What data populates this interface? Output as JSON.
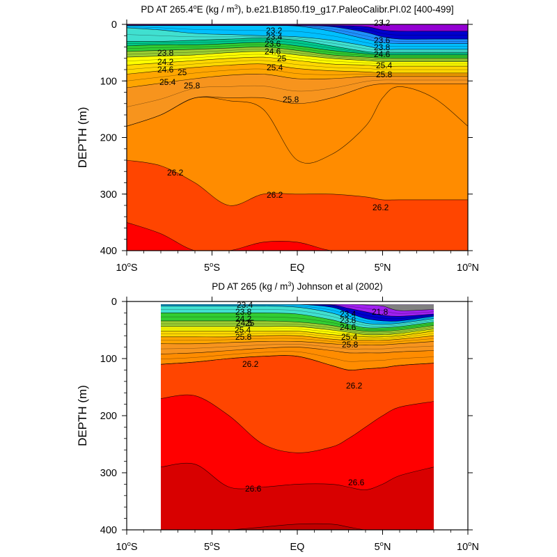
{
  "chart_data": [
    {
      "type": "heatmap",
      "title_parts": [
        "PD AT 265.4",
        "o",
        "E (kg / m",
        "3",
        "), b.e21.B1850.f19_g17.PaleoCalibr.PI.02 [400-499]"
      ],
      "ylabel": "DEPTH (m)",
      "xlabel": "",
      "x_ticks": [
        {
          "main": "10",
          "sup": "o",
          "tail": "S"
        },
        {
          "main": "5",
          "sup": "o",
          "tail": "S"
        },
        {
          "main": "EQ",
          "sup": "",
          "tail": ""
        },
        {
          "main": "5",
          "sup": "o",
          "tail": "N"
        },
        {
          "main": "10",
          "sup": "o",
          "tail": "N"
        }
      ],
      "x_tick_values": [
        -10,
        -5,
        0,
        5,
        10
      ],
      "y_ticks": [
        "0",
        "100",
        "200",
        "300",
        "400"
      ],
      "y_tick_values": [
        0,
        100,
        200,
        300,
        400
      ],
      "xlim": [
        -10,
        10
      ],
      "ylim": [
        0,
        400
      ],
      "y_reversed": true,
      "x": [
        -10,
        -8,
        -6,
        -4,
        -2,
        0,
        2,
        4,
        5,
        6,
        8,
        10
      ],
      "surface_layers": [
        {
          "pd": 22.4,
          "color": "#9400d3",
          "depths": [
            2,
            2,
            2,
            2,
            2,
            2,
            2,
            4,
            10,
            12,
            12,
            12
          ]
        },
        {
          "pd": 22.8,
          "color": "#0000cd",
          "depths": [
            2,
            2,
            2,
            2,
            2,
            2,
            4,
            14,
            22,
            26,
            26,
            26
          ]
        },
        {
          "pd": 23.0,
          "color": "#1e90ff",
          "depths": [
            2,
            2,
            2,
            2,
            2,
            3,
            12,
            26,
            32,
            34,
            34,
            34
          ]
        },
        {
          "pd": 23.2,
          "color": "#00bfff",
          "depths": [
            6,
            10,
            16,
            18,
            20,
            22,
            28,
            38,
            44,
            44,
            44,
            44
          ]
        },
        {
          "pd": 23.4,
          "color": "#40e0d0",
          "depths": [
            30,
            30,
            28,
            26,
            24,
            28,
            38,
            48,
            50,
            50,
            50,
            50
          ]
        },
        {
          "pd": 23.6,
          "color": "#00c88c",
          "depths": [
            38,
            36,
            36,
            34,
            32,
            38,
            46,
            52,
            54,
            54,
            54,
            54
          ]
        },
        {
          "pd": 23.8,
          "color": "#32cd32",
          "depths": [
            48,
            46,
            44,
            42,
            40,
            46,
            54,
            58,
            60,
            60,
            60,
            60
          ]
        },
        {
          "pd": 24.2,
          "color": "#9acd32",
          "depths": [
            58,
            56,
            54,
            50,
            48,
            54,
            60,
            64,
            66,
            66,
            66,
            66
          ]
        },
        {
          "pd": 24.6,
          "color": "#ffff00",
          "depths": [
            72,
            68,
            64,
            60,
            58,
            64,
            70,
            72,
            74,
            74,
            74,
            74
          ]
        },
        {
          "pd": 25.0,
          "color": "#ffd700",
          "depths": [
            88,
            82,
            76,
            72,
            70,
            78,
            82,
            84,
            86,
            86,
            86,
            86
          ]
        },
        {
          "pd": 25.4,
          "color": "#ffa500",
          "depths": [
            112,
            104,
            96,
            90,
            88,
            96,
            96,
            92,
            92,
            92,
            92,
            92
          ]
        },
        {
          "pd": 25.8,
          "color": "#f7941d",
          "depths": [
            180,
            160,
            130,
            130,
            130,
            140,
            130,
            110,
            105,
            105,
            105,
            105
          ]
        }
      ],
      "deep_layers": [
        {
          "pd": 26.0,
          "color": "#ff8c00",
          "depths": [
            180,
            160,
            130,
            135,
            150,
            240,
            230,
            180,
            130,
            110,
            130,
            180
          ]
        },
        {
          "pd": 26.2,
          "color": "#ff4500",
          "depths": [
            240,
            250,
            280,
            320,
            300,
            300,
            300,
            305,
            310,
            310,
            310,
            310
          ]
        },
        {
          "pd": 26.4,
          "color": "#ff0000",
          "depths": [
            350,
            370,
            400,
            400,
            385,
            385,
            400,
            400,
            400,
            400,
            400,
            400
          ]
        },
        {
          "pd": 26.6,
          "color": "#d80000",
          "depths": [
            400,
            400,
            400,
            400,
            400,
            400,
            400,
            400,
            400,
            400,
            400,
            400
          ]
        }
      ],
      "contour_labels": [
        "23.2",
        "23.4",
        "23.6",
        "23.8",
        "24.2",
        "24.6",
        "25",
        "25.4",
        "25.8",
        "26.2"
      ]
    },
    {
      "type": "heatmap",
      "title_parts": [
        "PD AT 265 (kg / m",
        "3",
        ") Johnson et al (2002)"
      ],
      "ylabel": "DEPTH (m)",
      "xlabel": "",
      "x_ticks": [
        {
          "main": "10",
          "sup": "o",
          "tail": "S"
        },
        {
          "main": "5",
          "sup": "o",
          "tail": "S"
        },
        {
          "main": "EQ",
          "sup": "",
          "tail": ""
        },
        {
          "main": "5",
          "sup": "o",
          "tail": "N"
        },
        {
          "main": "10",
          "sup": "o",
          "tail": "N"
        }
      ],
      "x_tick_values": [
        -10,
        -5,
        0,
        5,
        10
      ],
      "y_ticks": [
        "0",
        "100",
        "200",
        "300",
        "400"
      ],
      "y_tick_values": [
        0,
        100,
        200,
        300,
        400
      ],
      "xlim": [
        -10,
        10
      ],
      "ylim": [
        0,
        400
      ],
      "y_reversed": true,
      "data_xlim": [
        -8,
        8
      ],
      "data_ylim": [
        5,
        400
      ],
      "x": [
        -8,
        -6,
        -4,
        -2,
        0,
        2,
        3,
        4,
        5,
        6,
        8
      ],
      "surface_layers": [
        {
          "pd": 22.0,
          "color": "#808080",
          "depths": [
            5,
            5,
            5,
            5,
            5,
            5,
            5,
            6,
            8,
            16,
            14
          ]
        },
        {
          "pd": 22.4,
          "color": "#a020f0",
          "depths": [
            5,
            5,
            5,
            5,
            5,
            6,
            12,
            18,
            24,
            26,
            22
          ]
        },
        {
          "pd": 22.8,
          "color": "#0000cd",
          "depths": [
            5,
            5,
            5,
            5,
            5,
            10,
            20,
            30,
            34,
            34,
            26
          ]
        },
        {
          "pd": 23.2,
          "color": "#00bfff",
          "depths": [
            8,
            8,
            8,
            8,
            10,
            20,
            30,
            38,
            40,
            38,
            30
          ]
        },
        {
          "pd": 23.4,
          "color": "#40e0d0",
          "depths": [
            20,
            20,
            20,
            20,
            22,
            32,
            40,
            46,
            46,
            44,
            36
          ]
        },
        {
          "pd": 23.8,
          "color": "#32cd32",
          "depths": [
            34,
            34,
            34,
            34,
            36,
            42,
            48,
            52,
            52,
            50,
            42
          ]
        },
        {
          "pd": 24.2,
          "color": "#9acd32",
          "depths": [
            44,
            44,
            44,
            44,
            44,
            50,
            54,
            58,
            58,
            56,
            48
          ]
        },
        {
          "pd": 24.6,
          "color": "#ffff00",
          "depths": [
            52,
            52,
            52,
            52,
            52,
            58,
            60,
            62,
            62,
            60,
            52
          ]
        },
        {
          "pd": 25.0,
          "color": "#ffd700",
          "depths": [
            62,
            62,
            62,
            60,
            60,
            66,
            68,
            68,
            68,
            66,
            60
          ]
        },
        {
          "pd": 25.4,
          "color": "#ffa500",
          "depths": [
            74,
            74,
            72,
            70,
            70,
            74,
            76,
            76,
            76,
            74,
            70
          ]
        },
        {
          "pd": 25.8,
          "color": "#f7941d",
          "depths": [
            92,
            90,
            86,
            82,
            80,
            86,
            90,
            90,
            90,
            88,
            86
          ]
        },
        {
          "pd": 26.0,
          "color": "#ff8c00",
          "depths": [
            110,
            106,
            100,
            96,
            96,
            112,
            120,
            118,
            116,
            112,
            108
          ]
        }
      ],
      "deep_layers": [
        {
          "pd": 26.2,
          "color": "#ff4500",
          "depths": [
            110,
            106,
            100,
            96,
            96,
            112,
            120,
            118,
            116,
            112,
            108
          ]
        },
        {
          "pd": 26.4,
          "color": "#ff0000",
          "depths": [
            170,
            165,
            200,
            250,
            265,
            255,
            240,
            220,
            200,
            185,
            175
          ]
        },
        {
          "pd": 26.6,
          "color": "#d80000",
          "depths": [
            290,
            285,
            325,
            325,
            320,
            320,
            325,
            330,
            320,
            305,
            290
          ]
        },
        {
          "pd": 26.8,
          "color": "#c00000",
          "depths": [
            400,
            400,
            400,
            395,
            390,
            390,
            395,
            400,
            400,
            400,
            400
          ]
        }
      ],
      "contour_labels": [
        "23.4",
        "23.8",
        "24.2",
        "24.5",
        "25",
        "25.4",
        "25.8",
        "26.2",
        "26.6",
        "21.8"
      ]
    }
  ]
}
